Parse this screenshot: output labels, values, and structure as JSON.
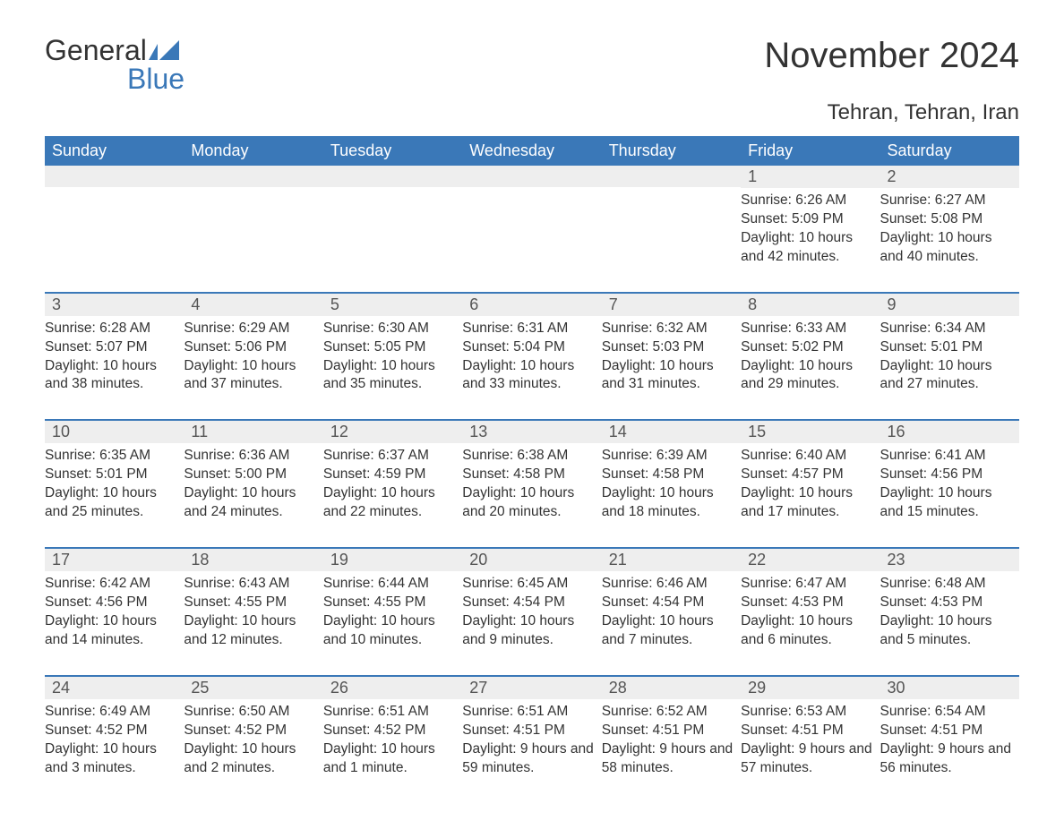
{
  "logo": {
    "word1": "General",
    "word2": "Blue"
  },
  "title": "November 2024",
  "location": "Tehran, Tehran, Iran",
  "colors": {
    "accent": "#3a78b8",
    "header_bg": "#3a78b8",
    "header_text": "#ffffff",
    "daybar_bg": "#eeeeee",
    "daybar_border": "#3a78b8",
    "text": "#333333",
    "background": "#ffffff"
  },
  "fonts": {
    "title_size_pt": 30,
    "location_size_pt": 18,
    "weekday_size_pt": 14,
    "daynum_size_pt": 14,
    "body_size_pt": 12
  },
  "weekdays": [
    "Sunday",
    "Monday",
    "Tuesday",
    "Wednesday",
    "Thursday",
    "Friday",
    "Saturday"
  ],
  "weeks": [
    [
      null,
      null,
      null,
      null,
      null,
      {
        "n": "1",
        "sunrise": "Sunrise: 6:26 AM",
        "sunset": "Sunset: 5:09 PM",
        "daylight": "Daylight: 10 hours and 42 minutes."
      },
      {
        "n": "2",
        "sunrise": "Sunrise: 6:27 AM",
        "sunset": "Sunset: 5:08 PM",
        "daylight": "Daylight: 10 hours and 40 minutes."
      }
    ],
    [
      {
        "n": "3",
        "sunrise": "Sunrise: 6:28 AM",
        "sunset": "Sunset: 5:07 PM",
        "daylight": "Daylight: 10 hours and 38 minutes."
      },
      {
        "n": "4",
        "sunrise": "Sunrise: 6:29 AM",
        "sunset": "Sunset: 5:06 PM",
        "daylight": "Daylight: 10 hours and 37 minutes."
      },
      {
        "n": "5",
        "sunrise": "Sunrise: 6:30 AM",
        "sunset": "Sunset: 5:05 PM",
        "daylight": "Daylight: 10 hours and 35 minutes."
      },
      {
        "n": "6",
        "sunrise": "Sunrise: 6:31 AM",
        "sunset": "Sunset: 5:04 PM",
        "daylight": "Daylight: 10 hours and 33 minutes."
      },
      {
        "n": "7",
        "sunrise": "Sunrise: 6:32 AM",
        "sunset": "Sunset: 5:03 PM",
        "daylight": "Daylight: 10 hours and 31 minutes."
      },
      {
        "n": "8",
        "sunrise": "Sunrise: 6:33 AM",
        "sunset": "Sunset: 5:02 PM",
        "daylight": "Daylight: 10 hours and 29 minutes."
      },
      {
        "n": "9",
        "sunrise": "Sunrise: 6:34 AM",
        "sunset": "Sunset: 5:01 PM",
        "daylight": "Daylight: 10 hours and 27 minutes."
      }
    ],
    [
      {
        "n": "10",
        "sunrise": "Sunrise: 6:35 AM",
        "sunset": "Sunset: 5:01 PM",
        "daylight": "Daylight: 10 hours and 25 minutes."
      },
      {
        "n": "11",
        "sunrise": "Sunrise: 6:36 AM",
        "sunset": "Sunset: 5:00 PM",
        "daylight": "Daylight: 10 hours and 24 minutes."
      },
      {
        "n": "12",
        "sunrise": "Sunrise: 6:37 AM",
        "sunset": "Sunset: 4:59 PM",
        "daylight": "Daylight: 10 hours and 22 minutes."
      },
      {
        "n": "13",
        "sunrise": "Sunrise: 6:38 AM",
        "sunset": "Sunset: 4:58 PM",
        "daylight": "Daylight: 10 hours and 20 minutes."
      },
      {
        "n": "14",
        "sunrise": "Sunrise: 6:39 AM",
        "sunset": "Sunset: 4:58 PM",
        "daylight": "Daylight: 10 hours and 18 minutes."
      },
      {
        "n": "15",
        "sunrise": "Sunrise: 6:40 AM",
        "sunset": "Sunset: 4:57 PM",
        "daylight": "Daylight: 10 hours and 17 minutes."
      },
      {
        "n": "16",
        "sunrise": "Sunrise: 6:41 AM",
        "sunset": "Sunset: 4:56 PM",
        "daylight": "Daylight: 10 hours and 15 minutes."
      }
    ],
    [
      {
        "n": "17",
        "sunrise": "Sunrise: 6:42 AM",
        "sunset": "Sunset: 4:56 PM",
        "daylight": "Daylight: 10 hours and 14 minutes."
      },
      {
        "n": "18",
        "sunrise": "Sunrise: 6:43 AM",
        "sunset": "Sunset: 4:55 PM",
        "daylight": "Daylight: 10 hours and 12 minutes."
      },
      {
        "n": "19",
        "sunrise": "Sunrise: 6:44 AM",
        "sunset": "Sunset: 4:55 PM",
        "daylight": "Daylight: 10 hours and 10 minutes."
      },
      {
        "n": "20",
        "sunrise": "Sunrise: 6:45 AM",
        "sunset": "Sunset: 4:54 PM",
        "daylight": "Daylight: 10 hours and 9 minutes."
      },
      {
        "n": "21",
        "sunrise": "Sunrise: 6:46 AM",
        "sunset": "Sunset: 4:54 PM",
        "daylight": "Daylight: 10 hours and 7 minutes."
      },
      {
        "n": "22",
        "sunrise": "Sunrise: 6:47 AM",
        "sunset": "Sunset: 4:53 PM",
        "daylight": "Daylight: 10 hours and 6 minutes."
      },
      {
        "n": "23",
        "sunrise": "Sunrise: 6:48 AM",
        "sunset": "Sunset: 4:53 PM",
        "daylight": "Daylight: 10 hours and 5 minutes."
      }
    ],
    [
      {
        "n": "24",
        "sunrise": "Sunrise: 6:49 AM",
        "sunset": "Sunset: 4:52 PM",
        "daylight": "Daylight: 10 hours and 3 minutes."
      },
      {
        "n": "25",
        "sunrise": "Sunrise: 6:50 AM",
        "sunset": "Sunset: 4:52 PM",
        "daylight": "Daylight: 10 hours and 2 minutes."
      },
      {
        "n": "26",
        "sunrise": "Sunrise: 6:51 AM",
        "sunset": "Sunset: 4:52 PM",
        "daylight": "Daylight: 10 hours and 1 minute."
      },
      {
        "n": "27",
        "sunrise": "Sunrise: 6:51 AM",
        "sunset": "Sunset: 4:51 PM",
        "daylight": "Daylight: 9 hours and 59 minutes."
      },
      {
        "n": "28",
        "sunrise": "Sunrise: 6:52 AM",
        "sunset": "Sunset: 4:51 PM",
        "daylight": "Daylight: 9 hours and 58 minutes."
      },
      {
        "n": "29",
        "sunrise": "Sunrise: 6:53 AM",
        "sunset": "Sunset: 4:51 PM",
        "daylight": "Daylight: 9 hours and 57 minutes."
      },
      {
        "n": "30",
        "sunrise": "Sunrise: 6:54 AM",
        "sunset": "Sunset: 4:51 PM",
        "daylight": "Daylight: 9 hours and 56 minutes."
      }
    ]
  ]
}
